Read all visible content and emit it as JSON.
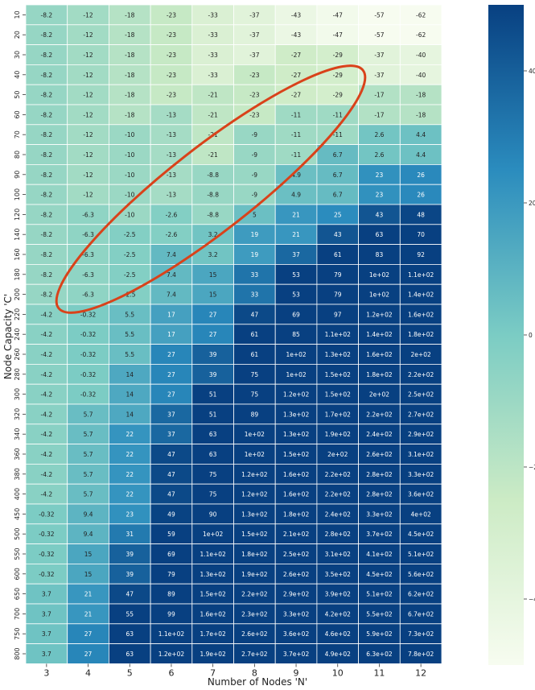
{
  "chart_data": {
    "type": "heatmap",
    "title": "",
    "xlabel": "Number of Nodes 'N'",
    "ylabel": "Node Capacity 'C'",
    "x": [
      "3",
      "4",
      "5",
      "6",
      "7",
      "8",
      "9",
      "10",
      "11",
      "12"
    ],
    "y": [
      "10",
      "20",
      "30",
      "40",
      "50",
      "60",
      "70",
      "80",
      "90",
      "100",
      "120",
      "140",
      "160",
      "180",
      "200",
      "220",
      "240",
      "260",
      "280",
      "300",
      "320",
      "340",
      "360",
      "380",
      "400",
      "450",
      "500",
      "550",
      "600",
      "650",
      "700",
      "750",
      "800"
    ],
    "values": [
      [
        -8.2,
        -12,
        -18,
        -23,
        -33,
        -37,
        -43,
        -47,
        -57,
        -62
      ],
      [
        -8.2,
        -12,
        -18,
        -23,
        -33,
        -37,
        -43,
        -47,
        -57,
        -62
      ],
      [
        -8.2,
        -12,
        -18,
        -23,
        -33,
        -37,
        -27,
        -29,
        -37,
        -40
      ],
      [
        -8.2,
        -12,
        -18,
        -23,
        -33,
        -23,
        -27,
        -29,
        -37,
        -40
      ],
      [
        -8.2,
        -12,
        -18,
        -23,
        -21,
        -23,
        -27,
        -29,
        -17,
        -18
      ],
      [
        -8.2,
        -12,
        -18,
        -13,
        -21,
        -23,
        -11,
        -11,
        -17,
        -18
      ],
      [
        -8.2,
        -12,
        -10,
        -13,
        -21,
        -9,
        -11,
        -11,
        2.6,
        4.4
      ],
      [
        -8.2,
        -12,
        -10,
        -13,
        -21,
        -9,
        -11,
        6.7,
        2.6,
        4.4
      ],
      [
        -8.2,
        -12,
        -10,
        -13,
        -8.8,
        -9,
        4.9,
        6.7,
        23,
        26
      ],
      [
        -8.2,
        -12,
        -10,
        -13,
        -8.8,
        -9,
        4.9,
        6.7,
        23,
        26
      ],
      [
        -8.2,
        -6.3,
        -10,
        -2.6,
        -8.8,
        5,
        21,
        25,
        43,
        48
      ],
      [
        -8.2,
        -6.3,
        -2.5,
        -2.6,
        3.2,
        19,
        21,
        43,
        63,
        70
      ],
      [
        -8.2,
        -6.3,
        -2.5,
        7.4,
        3.2,
        19,
        37,
        61,
        83,
        92
      ],
      [
        -8.2,
        -6.3,
        -2.5,
        7.4,
        15,
        33,
        53,
        79,
        100,
        110
      ],
      [
        -8.2,
        -6.3,
        -2.5,
        7.4,
        15,
        33,
        53,
        79,
        100,
        140
      ],
      [
        -4.2,
        -0.32,
        5.5,
        17,
        27,
        47,
        69,
        97,
        120,
        160
      ],
      [
        -4.2,
        -0.32,
        5.5,
        17,
        27,
        61,
        85,
        110,
        140,
        180
      ],
      [
        -4.2,
        -0.32,
        5.5,
        27,
        39,
        61,
        100,
        130,
        160,
        200
      ],
      [
        -4.2,
        -0.32,
        14,
        27,
        39,
        75,
        100,
        150,
        180,
        220
      ],
      [
        -4.2,
        -0.32,
        14,
        27,
        51,
        75,
        120,
        150,
        200,
        250
      ],
      [
        -4.2,
        5.7,
        14,
        37,
        51,
        89,
        130,
        170,
        220,
        270
      ],
      [
        -4.2,
        5.7,
        22,
        37,
        63,
        100,
        130,
        190,
        240,
        290
      ],
      [
        -4.2,
        5.7,
        22,
        47,
        63,
        100,
        150,
        200,
        260,
        310
      ],
      [
        -4.2,
        5.7,
        22,
        47,
        75,
        120,
        160,
        220,
        280,
        330
      ],
      [
        -4.2,
        5.7,
        22,
        47,
        75,
        120,
        160,
        220,
        280,
        360
      ],
      [
        -0.32,
        9.4,
        23,
        49,
        90,
        130,
        180,
        240,
        330,
        400
      ],
      [
        -0.32,
        9.4,
        31,
        59,
        100,
        150,
        210,
        280,
        370,
        450
      ],
      [
        -0.32,
        15,
        39,
        69,
        110,
        180,
        250,
        310,
        410,
        510
      ],
      [
        -0.32,
        15,
        39,
        79,
        130,
        190,
        260,
        350,
        450,
        560
      ],
      [
        3.7,
        21,
        47,
        89,
        150,
        220,
        290,
        390,
        510,
        620
      ],
      [
        3.7,
        21,
        55,
        99,
        160,
        230,
        330,
        420,
        550,
        670
      ],
      [
        3.7,
        27,
        63,
        110,
        170,
        260,
        360,
        460,
        590,
        730
      ],
      [
        3.7,
        27,
        63,
        120,
        190,
        270,
        370,
        490,
        630,
        780
      ]
    ],
    "labels": [
      [
        "-8.2",
        "-12",
        "-18",
        "-23",
        "-33",
        "-37",
        "-43",
        "-47",
        "-57",
        "-62"
      ],
      [
        "-8.2",
        "-12",
        "-18",
        "-23",
        "-33",
        "-37",
        "-43",
        "-47",
        "-57",
        "-62"
      ],
      [
        "-8.2",
        "-12",
        "-18",
        "-23",
        "-33",
        "-37",
        "-27",
        "-29",
        "-37",
        "-40"
      ],
      [
        "-8.2",
        "-12",
        "-18",
        "-23",
        "-33",
        "-23",
        "-27",
        "-29",
        "-37",
        "-40"
      ],
      [
        "-8.2",
        "-12",
        "-18",
        "-23",
        "-21",
        "-23",
        "-27",
        "-29",
        "-17",
        "-18"
      ],
      [
        "-8.2",
        "-12",
        "-18",
        "-13",
        "-21",
        "-23",
        "-11",
        "-11",
        "-17",
        "-18"
      ],
      [
        "-8.2",
        "-12",
        "-10",
        "-13",
        "-21",
        "-9",
        "-11",
        "-11",
        "2.6",
        "4.4"
      ],
      [
        "-8.2",
        "-12",
        "-10",
        "-13",
        "-21",
        "-9",
        "-11",
        "6.7",
        "2.6",
        "4.4"
      ],
      [
        "-8.2",
        "-12",
        "-10",
        "-13",
        "-8.8",
        "-9",
        "4.9",
        "6.7",
        "23",
        "26"
      ],
      [
        "-8.2",
        "-12",
        "-10",
        "-13",
        "-8.8",
        "-9",
        "4.9",
        "6.7",
        "23",
        "26"
      ],
      [
        "-8.2",
        "-6.3",
        "-10",
        "-2.6",
        "-8.8",
        "5",
        "21",
        "25",
        "43",
        "48"
      ],
      [
        "-8.2",
        "-6.3",
        "-2.5",
        "-2.6",
        "3.2",
        "19",
        "21",
        "43",
        "63",
        "70"
      ],
      [
        "-8.2",
        "-6.3",
        "-2.5",
        "7.4",
        "3.2",
        "19",
        "37",
        "61",
        "83",
        "92"
      ],
      [
        "-8.2",
        "-6.3",
        "-2.5",
        "7.4",
        "15",
        "33",
        "53",
        "79",
        "1e+02",
        "1.1e+02"
      ],
      [
        "-8.2",
        "-6.3",
        "-2.5",
        "7.4",
        "15",
        "33",
        "53",
        "79",
        "1e+02",
        "1.4e+02"
      ],
      [
        "-4.2",
        "-0.32",
        "5.5",
        "17",
        "27",
        "47",
        "69",
        "97",
        "1.2e+02",
        "1.6e+02"
      ],
      [
        "-4.2",
        "-0.32",
        "5.5",
        "17",
        "27",
        "61",
        "85",
        "1.1e+02",
        "1.4e+02",
        "1.8e+02"
      ],
      [
        "-4.2",
        "-0.32",
        "5.5",
        "27",
        "39",
        "61",
        "1e+02",
        "1.3e+02",
        "1.6e+02",
        "2e+02"
      ],
      [
        "-4.2",
        "-0.32",
        "14",
        "27",
        "39",
        "75",
        "1e+02",
        "1.5e+02",
        "1.8e+02",
        "2.2e+02"
      ],
      [
        "-4.2",
        "-0.32",
        "14",
        "27",
        "51",
        "75",
        "1.2e+02",
        "1.5e+02",
        "2e+02",
        "2.5e+02"
      ],
      [
        "-4.2",
        "5.7",
        "14",
        "37",
        "51",
        "89",
        "1.3e+02",
        "1.7e+02",
        "2.2e+02",
        "2.7e+02"
      ],
      [
        "-4.2",
        "5.7",
        "22",
        "37",
        "63",
        "1e+02",
        "1.3e+02",
        "1.9e+02",
        "2.4e+02",
        "2.9e+02"
      ],
      [
        "-4.2",
        "5.7",
        "22",
        "47",
        "63",
        "1e+02",
        "1.5e+02",
        "2e+02",
        "2.6e+02",
        "3.1e+02"
      ],
      [
        "-4.2",
        "5.7",
        "22",
        "47",
        "75",
        "1.2e+02",
        "1.6e+02",
        "2.2e+02",
        "2.8e+02",
        "3.3e+02"
      ],
      [
        "-4.2",
        "5.7",
        "22",
        "47",
        "75",
        "1.2e+02",
        "1.6e+02",
        "2.2e+02",
        "2.8e+02",
        "3.6e+02"
      ],
      [
        "-0.32",
        "9.4",
        "23",
        "49",
        "90",
        "1.3e+02",
        "1.8e+02",
        "2.4e+02",
        "3.3e+02",
        "4e+02"
      ],
      [
        "-0.32",
        "9.4",
        "31",
        "59",
        "1e+02",
        "1.5e+02",
        "2.1e+02",
        "2.8e+02",
        "3.7e+02",
        "4.5e+02"
      ],
      [
        "-0.32",
        "15",
        "39",
        "69",
        "1.1e+02",
        "1.8e+02",
        "2.5e+02",
        "3.1e+02",
        "4.1e+02",
        "5.1e+02"
      ],
      [
        "-0.32",
        "15",
        "39",
        "79",
        "1.3e+02",
        "1.9e+02",
        "2.6e+02",
        "3.5e+02",
        "4.5e+02",
        "5.6e+02"
      ],
      [
        "3.7",
        "21",
        "47",
        "89",
        "1.5e+02",
        "2.2e+02",
        "2.9e+02",
        "3.9e+02",
        "5.1e+02",
        "6.2e+02"
      ],
      [
        "3.7",
        "21",
        "55",
        "99",
        "1.6e+02",
        "2.3e+02",
        "3.3e+02",
        "4.2e+02",
        "5.5e+02",
        "6.7e+02"
      ],
      [
        "3.7",
        "27",
        "63",
        "1.1e+02",
        "1.7e+02",
        "2.6e+02",
        "3.6e+02",
        "4.6e+02",
        "5.9e+02",
        "7.3e+02"
      ],
      [
        "3.7",
        "27",
        "63",
        "1.2e+02",
        "1.9e+02",
        "2.7e+02",
        "3.7e+02",
        "4.9e+02",
        "6.3e+02",
        "7.8e+02"
      ]
    ],
    "colormap": "GnBu",
    "colormap_stops": [
      "#f7fcf0",
      "#ccebc5",
      "#7bccc4",
      "#2b8cbe",
      "#084081"
    ],
    "color_range": [
      -50,
      50
    ],
    "colorbar_ticks": [
      "40",
      "20",
      "0",
      "-20",
      "-40"
    ],
    "colorbar_tick_values": [
      40,
      20,
      0,
      -20,
      -40
    ],
    "annotation": {
      "type": "ellipse",
      "color": "#d9421a"
    }
  }
}
